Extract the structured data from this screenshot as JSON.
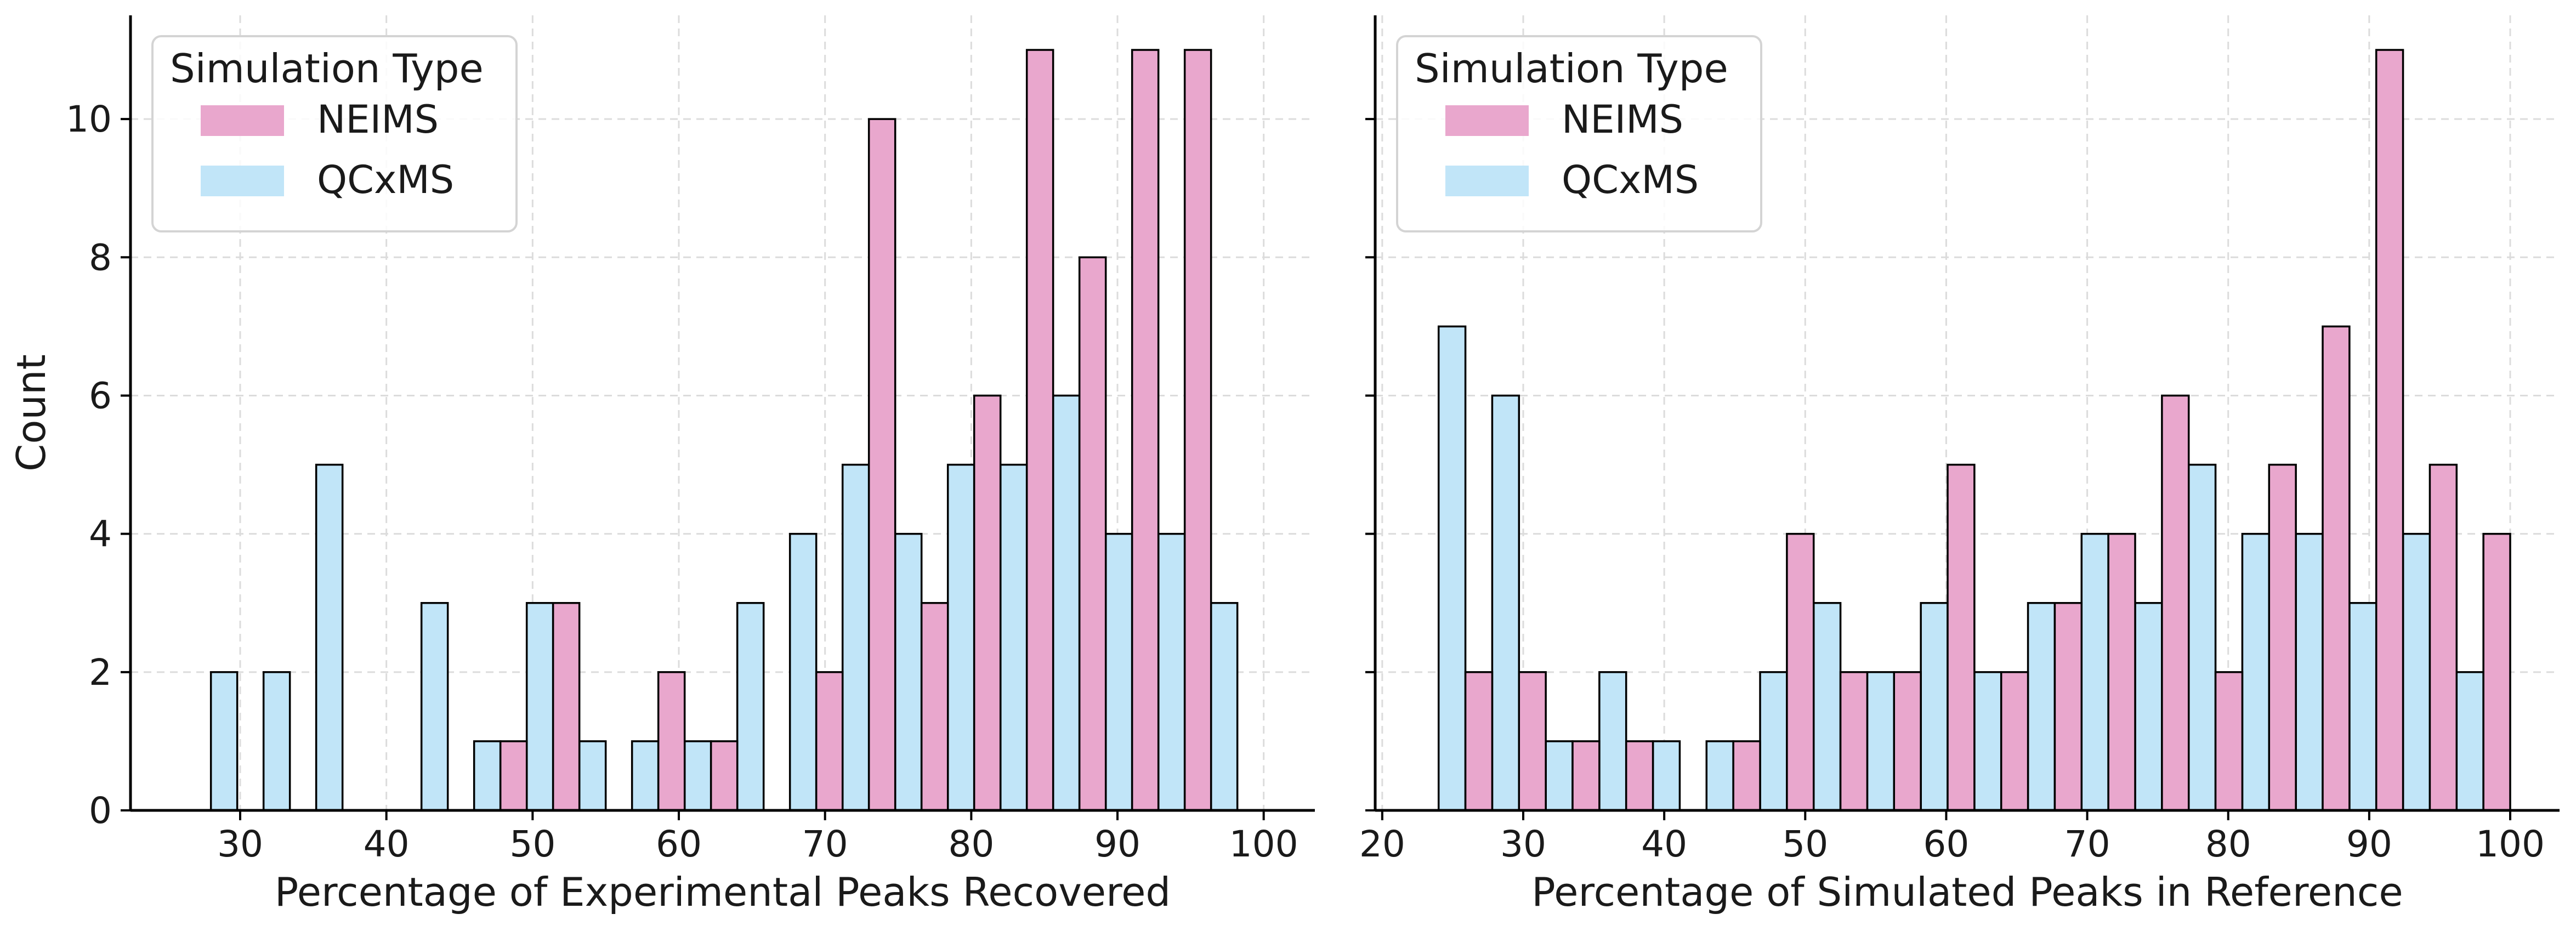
{
  "colors": {
    "neims": "#e9a7cd",
    "qcxms": "#c1e5f8",
    "axis": "#000000",
    "grid": "#dcdcdc"
  },
  "chart_data": [
    {
      "type": "bar",
      "panel": "left",
      "xlabel": "Percentage of Experimental Peaks Recovered",
      "ylabel": "Count",
      "xlim": [
        22.5,
        103.5
      ],
      "ylim": [
        0,
        11.5
      ],
      "xticks": [
        30,
        40,
        50,
        60,
        70,
        80,
        90,
        100
      ],
      "yticks": [
        0,
        2,
        4,
        6,
        8,
        10
      ],
      "grid": true,
      "bin_width": 3.6,
      "legend": {
        "title": "Simulation Type",
        "position": "top-left",
        "entries": [
          "NEIMS",
          "QCxMS"
        ]
      },
      "series": [
        {
          "name": "QCxMS",
          "bin_starts": [
            28.0,
            31.6,
            35.2,
            38.8,
            42.4,
            46.0,
            49.6,
            53.2,
            56.8,
            60.4,
            64.0,
            67.6,
            71.2,
            74.8,
            78.4,
            82.0,
            85.6,
            89.2,
            92.8,
            96.4
          ],
          "values": [
            2,
            2,
            5,
            0,
            3,
            1,
            3,
            1,
            1,
            1,
            3,
            4,
            5,
            4,
            5,
            5,
            6,
            4,
            4,
            3
          ]
        },
        {
          "name": "NEIMS",
          "bin_starts": [
            28.0,
            31.6,
            35.2,
            38.8,
            42.4,
            46.0,
            49.6,
            53.2,
            56.8,
            60.4,
            64.0,
            67.6,
            71.2,
            74.8,
            78.4,
            82.0,
            85.6,
            89.2,
            92.8,
            96.4
          ],
          "values": [
            0,
            0,
            0,
            0,
            0,
            1,
            3,
            0,
            2,
            1,
            0,
            2,
            10,
            3,
            6,
            11,
            8,
            11,
            11,
            0
          ]
        }
      ]
    },
    {
      "type": "bar",
      "panel": "right",
      "xlabel": "Percentage of Simulated Peaks in Reference",
      "ylabel": "",
      "xlim": [
        19.5,
        103.5
      ],
      "ylim": [
        0,
        11.5
      ],
      "xticks": [
        20,
        30,
        40,
        50,
        60,
        70,
        80,
        90,
        100
      ],
      "yticks": [
        0,
        2,
        4,
        6,
        8,
        10
      ],
      "grid": true,
      "bin_width": 3.8,
      "legend": {
        "title": "Simulation Type",
        "position": "top-left",
        "entries": [
          "NEIMS",
          "QCxMS"
        ]
      },
      "series": [
        {
          "name": "QCxMS",
          "bin_starts": [
            24.0,
            27.8,
            31.6,
            35.4,
            39.2,
            43.0,
            46.8,
            50.6,
            54.4,
            58.2,
            62.0,
            65.8,
            69.6,
            73.4,
            77.2,
            81.0,
            84.8,
            88.6,
            92.4,
            96.2
          ],
          "values": [
            7,
            6,
            1,
            2,
            1,
            1,
            2,
            3,
            2,
            3,
            2,
            3,
            4,
            3,
            5,
            4,
            4,
            3,
            4,
            2
          ]
        },
        {
          "name": "NEIMS",
          "bin_starts": [
            24.0,
            27.8,
            31.6,
            35.4,
            39.2,
            43.0,
            46.8,
            50.6,
            54.4,
            58.2,
            62.0,
            65.8,
            69.6,
            73.4,
            77.2,
            81.0,
            84.8,
            88.6,
            92.4,
            96.2
          ],
          "values": [
            2,
            2,
            1,
            1,
            0,
            1,
            4,
            2,
            2,
            5,
            2,
            3,
            4,
            6,
            2,
            5,
            7,
            11,
            5,
            4
          ]
        }
      ]
    }
  ]
}
